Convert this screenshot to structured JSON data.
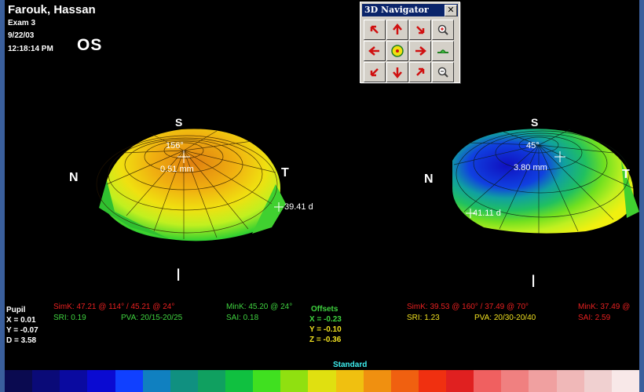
{
  "patient": {
    "name": "Farouk, Hassan",
    "exam": "Exam 3",
    "date": "9/22/03",
    "time": "12:18:14 PM",
    "eye": "OS"
  },
  "navigator": {
    "title": "3D Navigator",
    "close": "✕",
    "buttons": [
      {
        "name": "rotate-up-left",
        "icon": "arrow-up-left-icon"
      },
      {
        "name": "rotate-up",
        "icon": "arrow-up-icon"
      },
      {
        "name": "rotate-down-right",
        "icon": "arrow-down-right-icon"
      },
      {
        "name": "zoom-in",
        "icon": "zoom-in-icon"
      },
      {
        "name": "rotate-left",
        "icon": "arrow-left-icon"
      },
      {
        "name": "center",
        "icon": "center-target-icon"
      },
      {
        "name": "rotate-right",
        "icon": "arrow-right-icon"
      },
      {
        "name": "flatten",
        "icon": "flat-view-icon"
      },
      {
        "name": "rotate-down-left",
        "icon": "arrow-down-left-icon"
      },
      {
        "name": "rotate-down",
        "icon": "arrow-down-icon"
      },
      {
        "name": "rotate-up-right",
        "icon": "arrow-up-right-icon"
      },
      {
        "name": "zoom-out",
        "icon": "zoom-out-icon"
      }
    ]
  },
  "left_map": {
    "orientation": {
      "top": "S",
      "nasal": "N",
      "temporal": "T",
      "inferior": "I"
    },
    "center_angle": "156°",
    "center_dist": "0.51 mm",
    "side_readout": "39.41 d",
    "sim_k": "SimK: 47.21 @ 114° / 45.21 @ 24°",
    "min_k": "MinK: 45.20 @ 24°",
    "sri": "SRI: 0.19",
    "pva": "PVA: 20/15-20/25",
    "sai": "SAI: 0.18"
  },
  "right_map": {
    "orientation": {
      "top": "S",
      "nasal": "N",
      "temporal": "T",
      "inferior": "I"
    },
    "center_angle": "45°",
    "center_dist": "3.80 mm",
    "side_readout": "41.11 d",
    "sim_k": "SimK: 39.53 @ 160° / 37.49 @ 70°",
    "min_k": "MinK: 37.49 @",
    "sri": "SRI: 1.23",
    "pva": "PVA: 20/30-20/40",
    "sai": "SAI: 2.59"
  },
  "pupil": {
    "title": "Pupil",
    "x": "X = 0.01",
    "y": "Y = -0.07",
    "d": "D = 3.58"
  },
  "offsets": {
    "title": "Offsets",
    "x": "X = -0.23",
    "y": "Y = -0.10",
    "z": "Z = -0.36"
  },
  "scale": {
    "label": "Standard",
    "colors": [
      "#0a0a50",
      "#0a0a78",
      "#0a0aa0",
      "#0a0ad2",
      "#1040ff",
      "#1080c0",
      "#109080",
      "#10a060",
      "#10c040",
      "#40e020",
      "#90e010",
      "#e0e010",
      "#f0c010",
      "#f09010",
      "#f06010",
      "#f03010",
      "#e02020",
      "#f06060",
      "#f08080",
      "#f0a0a0",
      "#f0b8b8",
      "#f0d0d0",
      "#f8e8e8"
    ]
  }
}
